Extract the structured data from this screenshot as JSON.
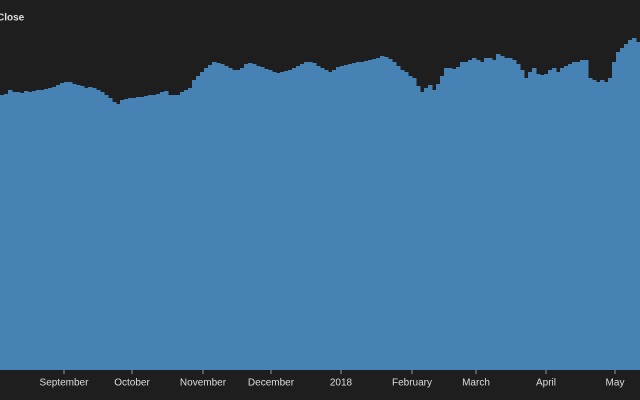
{
  "chart_data": {
    "type": "step-area",
    "title": "Close",
    "color": "#4682b4",
    "background": "#1e1e1e",
    "values": [
      275,
      276,
      280,
      278,
      278,
      277,
      279,
      278,
      279,
      280,
      280,
      281,
      282,
      283,
      285,
      287,
      288,
      288,
      286,
      285,
      284,
      282,
      283,
      282,
      280,
      278,
      275,
      272,
      268,
      266,
      270,
      271,
      272,
      272,
      273,
      273,
      274,
      275,
      275,
      276,
      278,
      279,
      275,
      275,
      275,
      278,
      280,
      282,
      290,
      294,
      298,
      302,
      305,
      308,
      307,
      306,
      304,
      302,
      300,
      300,
      302,
      306,
      307,
      306,
      304,
      303,
      301,
      300,
      298,
      297,
      298,
      299,
      300,
      302,
      304,
      306,
      308,
      308,
      307,
      304,
      302,
      300,
      298,
      300,
      303,
      304,
      305,
      306,
      307,
      308,
      308,
      309,
      310,
      311,
      312,
      314,
      313,
      311,
      308,
      304,
      300,
      298,
      294,
      292,
      284,
      278,
      282,
      285,
      280,
      286,
      294,
      302,
      302,
      301,
      303,
      308,
      308,
      310,
      312,
      310,
      308,
      312,
      312,
      310,
      316,
      314,
      312,
      312,
      310,
      306,
      300,
      292,
      298,
      302,
      296,
      295,
      296,
      300,
      302,
      298,
      302,
      304,
      306,
      308,
      308,
      310,
      310,
      292,
      290,
      288,
      290,
      288,
      292,
      308,
      318,
      322,
      326,
      330,
      332,
      328
    ],
    "xlim": [
      0,
      160
    ],
    "ylim": [
      0,
      370
    ],
    "xticks": [
      {
        "value": -2.5,
        "label": "ust"
      },
      {
        "value": 16,
        "label": "September"
      },
      {
        "value": 33,
        "label": "October"
      },
      {
        "value": 50.75,
        "label": "November"
      },
      {
        "value": 67.75,
        "label": "December"
      },
      {
        "value": 85.25,
        "label": "2018"
      },
      {
        "value": 103,
        "label": "February"
      },
      {
        "value": 119,
        "label": "March"
      },
      {
        "value": 136.5,
        "label": "April"
      },
      {
        "value": 153.75,
        "label": "May"
      }
    ]
  }
}
